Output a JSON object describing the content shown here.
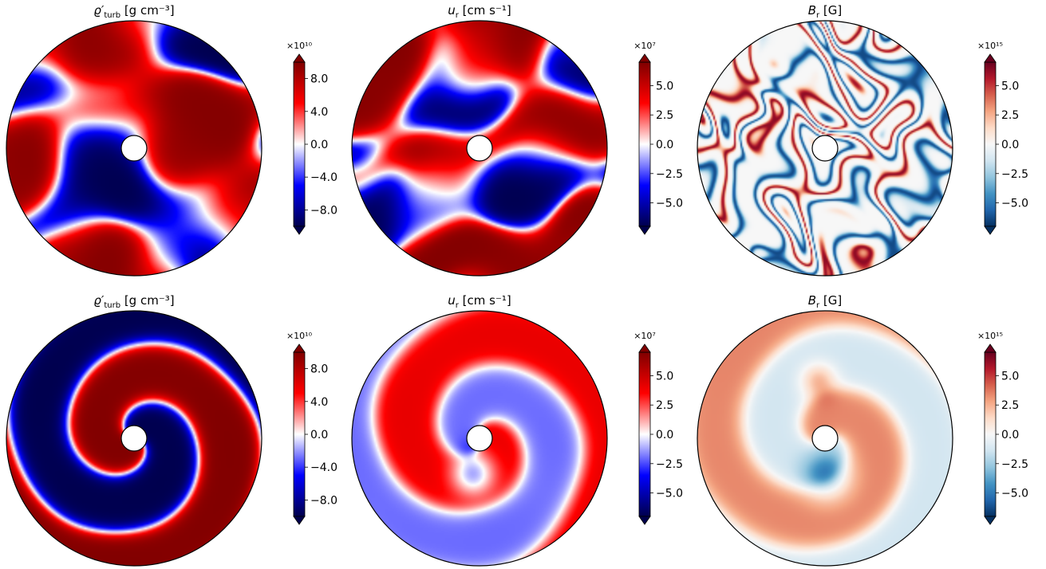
{
  "colors": {
    "seismic": [
      "#00004c",
      "#0000ff",
      "#ffffff",
      "#ff0000",
      "#800000"
    ],
    "rdbu": [
      "#053061",
      "#2166ac",
      "#4393c3",
      "#92c5de",
      "#d1e5f0",
      "#f7f7f7",
      "#fddbc7",
      "#f4a582",
      "#d6604d",
      "#b2182b",
      "#67001f"
    ]
  },
  "chart_data": [
    {
      "type": "heatmap",
      "row": 0,
      "col": 0,
      "title": "ϱ′",
      "title_sub": "turb",
      "title_unit": "[g cm⁻³]",
      "colormap": "seismic",
      "offset_text": "×10¹⁰",
      "clim": [
        -10,
        10
      ],
      "ticks": [
        8.0,
        4.0,
        0.0,
        -4.0,
        -8.0
      ],
      "tick_labels": [
        "8.0",
        "4.0",
        "0.0",
        "−4.0",
        "−8.0"
      ],
      "pattern": "turbulent",
      "seed": 11
    },
    {
      "type": "heatmap",
      "row": 0,
      "col": 1,
      "title": "u",
      "title_sub": "r",
      "title_unit": "[cm s⁻¹]",
      "colormap": "seismic",
      "offset_text": "×10⁷",
      "clim": [
        -7,
        7
      ],
      "ticks": [
        5.0,
        2.5,
        0.0,
        -2.5,
        -5.0
      ],
      "tick_labels": [
        "5.0",
        "2.5",
        "0.0",
        "−2.5",
        "−5.0"
      ],
      "pattern": "turbulent",
      "seed": 23
    },
    {
      "type": "heatmap",
      "row": 0,
      "col": 2,
      "title": "B",
      "title_sub": "r",
      "title_unit": "[G]",
      "colormap": "rdbu",
      "offset_text": "×10¹⁵",
      "clim": [
        -7,
        7
      ],
      "ticks": [
        5.0,
        2.5,
        0.0,
        -2.5,
        -5.0
      ],
      "tick_labels": [
        "5.0",
        "2.5",
        "0.0",
        "−2.5",
        "−5.0"
      ],
      "pattern": "filaments",
      "seed": 37
    },
    {
      "type": "heatmap",
      "row": 1,
      "col": 0,
      "title": "ϱ′",
      "title_sub": "turb",
      "title_unit": "[g cm⁻³]",
      "colormap": "seismic",
      "offset_text": "×10¹⁰",
      "clim": [
        -10,
        10
      ],
      "ticks": [
        8.0,
        4.0,
        0.0,
        -4.0,
        -8.0
      ],
      "tick_labels": [
        "8.0",
        "4.0",
        "0.0",
        "−4.0",
        "−8.0"
      ],
      "pattern": "spiral-strong",
      "seed": 5
    },
    {
      "type": "heatmap",
      "row": 1,
      "col": 1,
      "title": "u",
      "title_sub": "r",
      "title_unit": "[cm s⁻¹]",
      "colormap": "seismic",
      "offset_text": "×10⁷",
      "clim": [
        -7,
        7
      ],
      "ticks": [
        5.0,
        2.5,
        0.0,
        -2.5,
        -5.0
      ],
      "tick_labels": [
        "5.0",
        "2.5",
        "0.0",
        "−2.5",
        "−5.0"
      ],
      "pattern": "spiral-weak",
      "seed": 7
    },
    {
      "type": "heatmap",
      "row": 1,
      "col": 2,
      "title": "B",
      "title_sub": "r",
      "title_unit": "[G]",
      "colormap": "rdbu",
      "offset_text": "×10¹⁵",
      "clim": [
        -7,
        7
      ],
      "ticks": [
        5.0,
        2.5,
        0.0,
        -2.5,
        -5.0
      ],
      "tick_labels": [
        "5.0",
        "2.5",
        "0.0",
        "−2.5",
        "−5.0"
      ],
      "pattern": "spiral-mag",
      "seed": 9
    }
  ]
}
